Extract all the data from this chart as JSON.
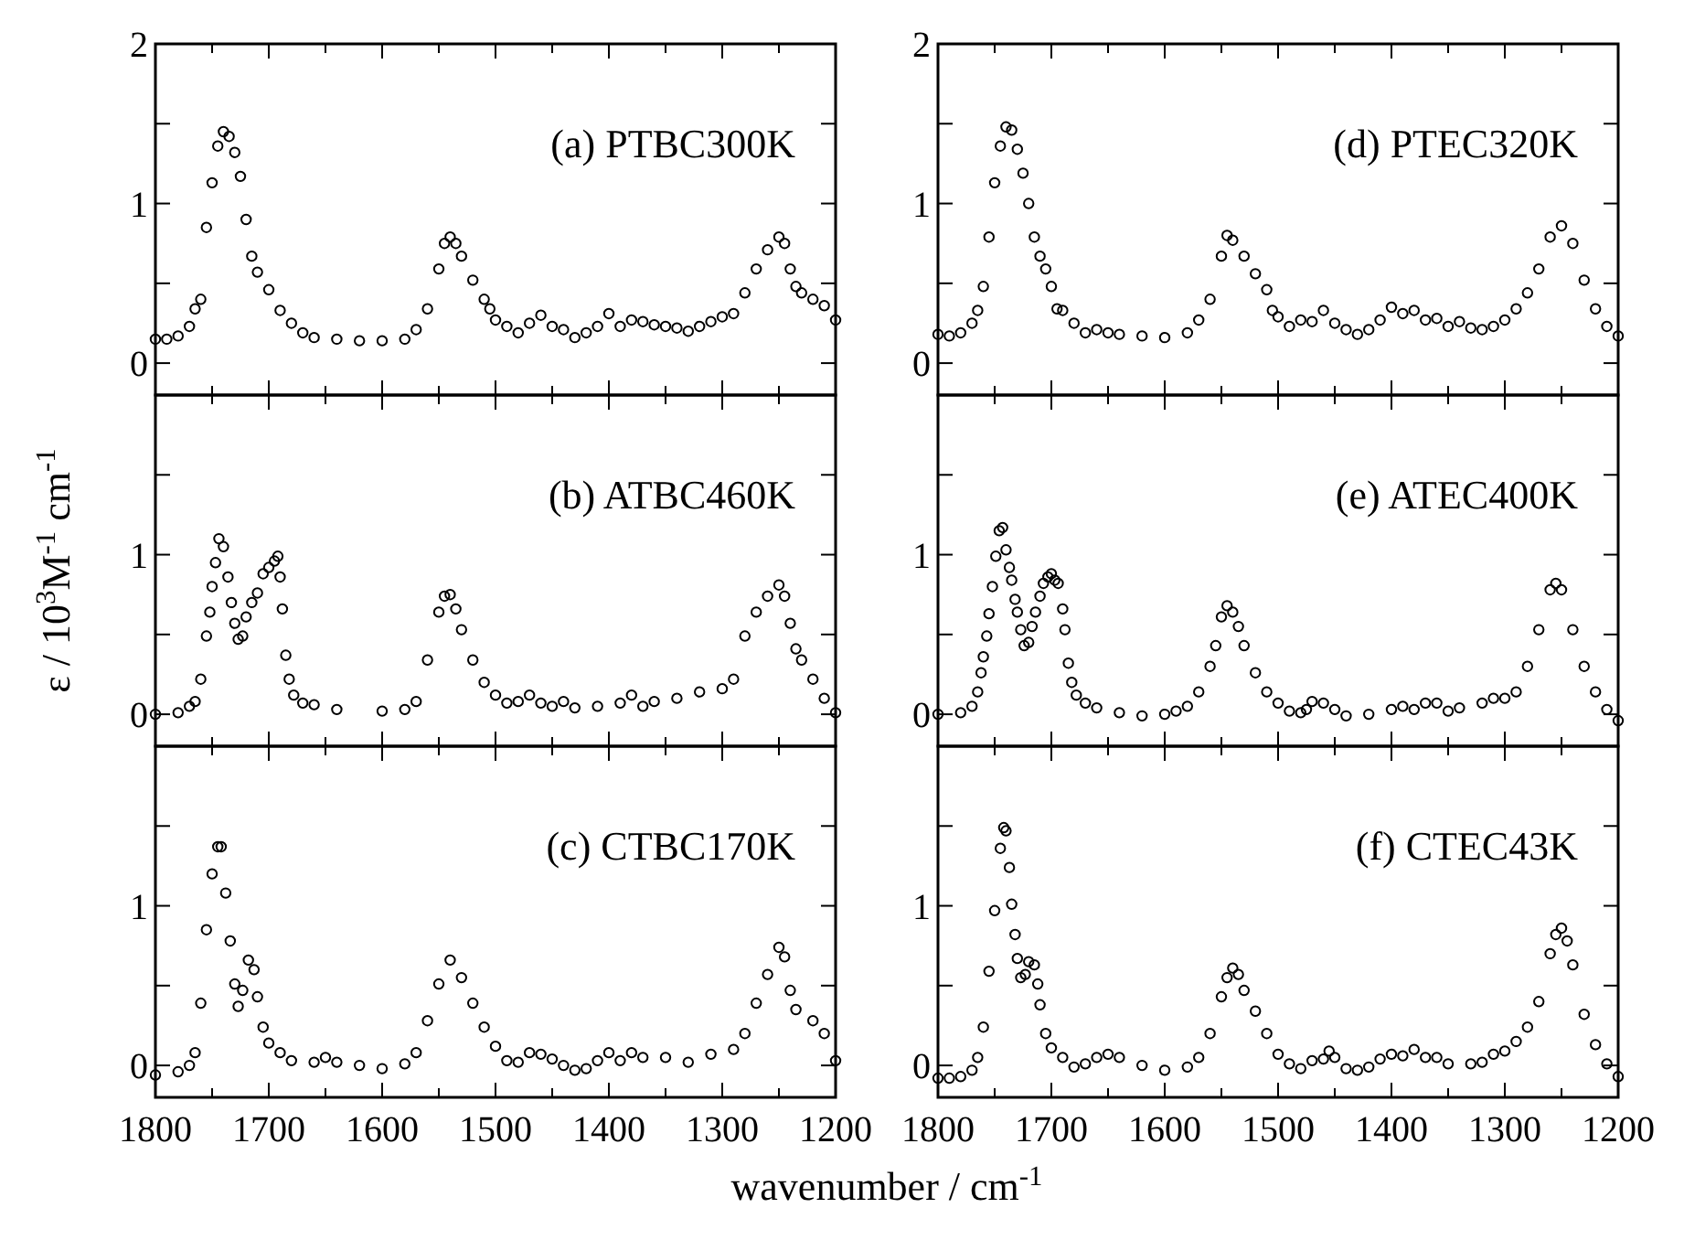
{
  "chart_data": [
    {
      "type": "scatter",
      "title": "(a) PTBC300K",
      "marker": "circle",
      "tick_labels": "y",
      "xlim": [
        1800,
        1200
      ],
      "ylim": [
        -0.2,
        2
      ],
      "xticks": [
        1800,
        {
          "value": 1750,
          "label": null
        },
        1700,
        {
          "value": 1650,
          "label": null
        },
        1600,
        {
          "value": 1550,
          "label": null
        },
        1500,
        {
          "value": 1450,
          "label": null
        },
        1400,
        {
          "value": 1350,
          "label": null
        },
        1300,
        {
          "value": 1250,
          "label": null
        },
        1200
      ],
      "yticks": [
        0,
        {
          "value": 0.5,
          "label": null
        },
        1,
        {
          "value": 1.5,
          "label": null
        },
        2
      ],
      "series": [
        {
          "color": "#000000",
          "x": [
            1800,
            1790,
            1780,
            1770,
            1765,
            1760,
            1755,
            1750,
            1745,
            1740,
            1735,
            1730,
            1725,
            1720,
            1715,
            1710,
            1700,
            1690,
            1680,
            1670,
            1660,
            1640,
            1620,
            1600,
            1580,
            1570,
            1560,
            1550,
            1545,
            1540,
            1535,
            1530,
            1520,
            1510,
            1505,
            1500,
            1490,
            1480,
            1470,
            1460,
            1450,
            1440,
            1430,
            1420,
            1410,
            1400,
            1390,
            1380,
            1370,
            1360,
            1350,
            1340,
            1330,
            1320,
            1310,
            1300,
            1290,
            1280,
            1270,
            1260,
            1250,
            1245,
            1240,
            1235,
            1230,
            1220,
            1210,
            1200
          ],
          "values": [
            0.15,
            0.15,
            0.17,
            0.23,
            0.34,
            0.4,
            0.85,
            1.13,
            1.36,
            1.45,
            1.42,
            1.32,
            1.17,
            0.9,
            0.67,
            0.57,
            0.46,
            0.33,
            0.25,
            0.19,
            0.16,
            0.15,
            0.14,
            0.14,
            0.15,
            0.21,
            0.34,
            0.59,
            0.75,
            0.79,
            0.75,
            0.67,
            0.52,
            0.4,
            0.34,
            0.27,
            0.23,
            0.19,
            0.25,
            0.3,
            0.23,
            0.21,
            0.16,
            0.19,
            0.23,
            0.31,
            0.23,
            0.27,
            0.26,
            0.24,
            0.23,
            0.22,
            0.2,
            0.23,
            0.26,
            0.29,
            0.31,
            0.44,
            0.59,
            0.71,
            0.79,
            0.75,
            0.59,
            0.48,
            0.44,
            0.4,
            0.36,
            0.27
          ]
        }
      ]
    },
    {
      "type": "scatter",
      "title": "(d) PTEC320K",
      "marker": "circle",
      "tick_labels": "y",
      "xlim": [
        1800,
        1200
      ],
      "ylim": [
        -0.2,
        2
      ],
      "xticks": [
        1800,
        {
          "value": 1750,
          "label": null
        },
        1700,
        {
          "value": 1650,
          "label": null
        },
        1600,
        {
          "value": 1550,
          "label": null
        },
        1500,
        {
          "value": 1450,
          "label": null
        },
        1400,
        {
          "value": 1350,
          "label": null
        },
        1300,
        {
          "value": 1250,
          "label": null
        },
        1200
      ],
      "yticks": [
        0,
        {
          "value": 0.5,
          "label": null
        },
        1,
        {
          "value": 1.5,
          "label": null
        },
        2
      ],
      "series": [
        {
          "color": "#000000",
          "x": [
            1800,
            1790,
            1780,
            1770,
            1765,
            1760,
            1755,
            1750,
            1745,
            1740,
            1735,
            1730,
            1725,
            1720,
            1715,
            1710,
            1705,
            1700,
            1695,
            1690,
            1680,
            1670,
            1660,
            1650,
            1640,
            1620,
            1600,
            1580,
            1570,
            1560,
            1550,
            1545,
            1540,
            1530,
            1520,
            1510,
            1505,
            1500,
            1490,
            1480,
            1470,
            1460,
            1450,
            1440,
            1430,
            1420,
            1410,
            1400,
            1390,
            1380,
            1370,
            1360,
            1350,
            1340,
            1330,
            1320,
            1310,
            1300,
            1290,
            1280,
            1270,
            1260,
            1250,
            1240,
            1230,
            1220,
            1210,
            1200
          ],
          "values": [
            0.18,
            0.17,
            0.19,
            0.25,
            0.33,
            0.48,
            0.79,
            1.13,
            1.36,
            1.48,
            1.46,
            1.34,
            1.19,
            1.0,
            0.79,
            0.67,
            0.59,
            0.48,
            0.34,
            0.33,
            0.25,
            0.19,
            0.21,
            0.19,
            0.18,
            0.17,
            0.16,
            0.19,
            0.27,
            0.4,
            0.67,
            0.8,
            0.77,
            0.67,
            0.56,
            0.46,
            0.33,
            0.29,
            0.23,
            0.27,
            0.26,
            0.33,
            0.25,
            0.21,
            0.18,
            0.21,
            0.27,
            0.35,
            0.31,
            0.33,
            0.27,
            0.28,
            0.23,
            0.26,
            0.22,
            0.21,
            0.23,
            0.27,
            0.34,
            0.44,
            0.59,
            0.79,
            0.86,
            0.75,
            0.52,
            0.34,
            0.23,
            0.17
          ]
        }
      ]
    },
    {
      "type": "scatter",
      "title": "(b) ATBC460K",
      "ylabel": "ε / 10$^{3}$M$^{-1}$ cm$^{-1}$",
      "marker": "circle",
      "tick_labels": "y",
      "xlim": [
        1800,
        1200
      ],
      "ylim": [
        -0.2,
        2
      ],
      "xticks": [
        1800,
        {
          "value": 1750,
          "label": null
        },
        1700,
        {
          "value": 1650,
          "label": null
        },
        1600,
        {
          "value": 1550,
          "label": null
        },
        1500,
        {
          "value": 1450,
          "label": null
        },
        1400,
        {
          "value": 1350,
          "label": null
        },
        1300,
        {
          "value": 1250,
          "label": null
        },
        1200
      ],
      "yticks": [
        0,
        {
          "value": 0.5,
          "label": null
        },
        1,
        {
          "value": 1.5,
          "label": null
        },
        {
          "value": 2,
          "label": null
        }
      ],
      "series": [
        {
          "color": "#000000",
          "x": [
            1800,
            1780,
            1770,
            1765,
            1760,
            1755,
            1752,
            1750,
            1747,
            1744,
            1740,
            1736,
            1733,
            1730,
            1727,
            1723,
            1720,
            1715,
            1710,
            1705,
            1700,
            1695,
            1692,
            1690,
            1688,
            1685,
            1682,
            1678,
            1670,
            1660,
            1640,
            1600,
            1580,
            1570,
            1560,
            1550,
            1545,
            1540,
            1535,
            1530,
            1520,
            1510,
            1500,
            1490,
            1480,
            1470,
            1460,
            1450,
            1440,
            1430,
            1410,
            1390,
            1380,
            1370,
            1360,
            1340,
            1320,
            1300,
            1290,
            1280,
            1270,
            1260,
            1250,
            1245,
            1240,
            1235,
            1230,
            1220,
            1210,
            1200
          ],
          "values": [
            0.0,
            0.01,
            0.05,
            0.08,
            0.22,
            0.49,
            0.64,
            0.8,
            0.95,
            1.1,
            1.05,
            0.86,
            0.7,
            0.57,
            0.47,
            0.49,
            0.61,
            0.7,
            0.76,
            0.88,
            0.92,
            0.96,
            0.99,
            0.86,
            0.66,
            0.37,
            0.22,
            0.12,
            0.07,
            0.06,
            0.03,
            0.02,
            0.03,
            0.08,
            0.34,
            0.64,
            0.74,
            0.75,
            0.66,
            0.53,
            0.34,
            0.2,
            0.12,
            0.07,
            0.08,
            0.12,
            0.07,
            0.05,
            0.08,
            0.04,
            0.05,
            0.07,
            0.12,
            0.05,
            0.08,
            0.1,
            0.14,
            0.16,
            0.22,
            0.49,
            0.64,
            0.74,
            0.81,
            0.74,
            0.57,
            0.41,
            0.34,
            0.22,
            0.1,
            0.01
          ]
        }
      ]
    },
    {
      "type": "scatter",
      "title": "(e) ATEC400K",
      "marker": "circle",
      "tick_labels": "y",
      "xlim": [
        1800,
        1200
      ],
      "ylim": [
        -0.2,
        2
      ],
      "xticks": [
        1800,
        {
          "value": 1750,
          "label": null
        },
        1700,
        {
          "value": 1650,
          "label": null
        },
        1600,
        {
          "value": 1550,
          "label": null
        },
        1500,
        {
          "value": 1450,
          "label": null
        },
        1400,
        {
          "value": 1350,
          "label": null
        },
        1300,
        {
          "value": 1250,
          "label": null
        },
        1200
      ],
      "yticks": [
        0,
        {
          "value": 0.5,
          "label": null
        },
        1,
        {
          "value": 1.5,
          "label": null
        },
        {
          "value": 2,
          "label": null
        }
      ],
      "series": [
        {
          "color": "#000000",
          "x": [
            1800,
            1780,
            1770,
            1765,
            1762,
            1760,
            1757,
            1755,
            1752,
            1749,
            1746,
            1743,
            1740,
            1737,
            1735,
            1732,
            1730,
            1727,
            1724,
            1720,
            1717,
            1714,
            1710,
            1707,
            1703,
            1700,
            1697,
            1694,
            1690,
            1688,
            1685,
            1682,
            1678,
            1670,
            1660,
            1640,
            1620,
            1600,
            1590,
            1580,
            1570,
            1560,
            1555,
            1550,
            1545,
            1540,
            1535,
            1530,
            1520,
            1510,
            1500,
            1490,
            1480,
            1475,
            1470,
            1460,
            1450,
            1440,
            1420,
            1400,
            1390,
            1380,
            1370,
            1360,
            1350,
            1340,
            1320,
            1310,
            1300,
            1290,
            1280,
            1270,
            1260,
            1255,
            1250,
            1240,
            1230,
            1220,
            1210,
            1200
          ],
          "values": [
            0.0,
            0.01,
            0.05,
            0.14,
            0.26,
            0.36,
            0.49,
            0.63,
            0.8,
            0.99,
            1.15,
            1.17,
            1.03,
            0.92,
            0.84,
            0.72,
            0.64,
            0.53,
            0.43,
            0.45,
            0.55,
            0.64,
            0.74,
            0.82,
            0.86,
            0.88,
            0.84,
            0.82,
            0.66,
            0.53,
            0.32,
            0.2,
            0.12,
            0.07,
            0.04,
            0.01,
            -0.01,
            0.0,
            0.02,
            0.05,
            0.14,
            0.3,
            0.43,
            0.61,
            0.68,
            0.64,
            0.55,
            0.43,
            0.26,
            0.14,
            0.07,
            0.02,
            0.01,
            0.03,
            0.08,
            0.07,
            0.03,
            -0.01,
            0.0,
            0.03,
            0.05,
            0.03,
            0.07,
            0.07,
            0.02,
            0.04,
            0.07,
            0.1,
            0.1,
            0.14,
            0.3,
            0.53,
            0.78,
            0.82,
            0.78,
            0.53,
            0.3,
            0.14,
            0.03,
            -0.04
          ]
        }
      ]
    },
    {
      "type": "scatter",
      "title": "(c) CTBC170K",
      "xlabel": "wavenumber / cm$^{-1}$",
      "marker": "circle",
      "xlim": [
        1800,
        1200
      ],
      "ylim": [
        -0.2,
        2
      ],
      "xticks": [
        1800,
        {
          "value": 1750,
          "label": null
        },
        1700,
        {
          "value": 1650,
          "label": null
        },
        1600,
        {
          "value": 1550,
          "label": null
        },
        1500,
        {
          "value": 1450,
          "label": null
        },
        1400,
        {
          "value": 1350,
          "label": null
        },
        1300,
        {
          "value": 1250,
          "label": null
        },
        1200
      ],
      "yticks": [
        0,
        {
          "value": 0.5,
          "label": null
        },
        1,
        {
          "value": 1.5,
          "label": null
        },
        {
          "value": 2,
          "label": null
        }
      ],
      "series": [
        {
          "color": "#000000",
          "x": [
            1800,
            1780,
            1770,
            1765,
            1760,
            1755,
            1750,
            1745,
            1742,
            1738,
            1734,
            1730,
            1727,
            1723,
            1718,
            1713,
            1710,
            1705,
            1700,
            1690,
            1680,
            1660,
            1650,
            1640,
            1620,
            1600,
            1580,
            1570,
            1560,
            1550,
            1540,
            1530,
            1520,
            1510,
            1500,
            1490,
            1480,
            1470,
            1460,
            1450,
            1440,
            1430,
            1420,
            1410,
            1400,
            1390,
            1380,
            1370,
            1350,
            1330,
            1310,
            1290,
            1280,
            1270,
            1260,
            1250,
            1245,
            1240,
            1235,
            1220,
            1210,
            1200
          ],
          "values": [
            -0.06,
            -0.04,
            0.0,
            0.08,
            0.39,
            0.85,
            1.2,
            1.37,
            1.37,
            1.08,
            0.78,
            0.51,
            0.37,
            0.47,
            0.66,
            0.6,
            0.43,
            0.24,
            0.14,
            0.08,
            0.03,
            0.02,
            0.05,
            0.02,
            0.0,
            -0.02,
            0.01,
            0.08,
            0.28,
            0.51,
            0.66,
            0.55,
            0.39,
            0.24,
            0.12,
            0.03,
            0.02,
            0.08,
            0.07,
            0.04,
            0.0,
            -0.03,
            -0.02,
            0.03,
            0.08,
            0.03,
            0.08,
            0.05,
            0.05,
            0.02,
            0.07,
            0.1,
            0.2,
            0.39,
            0.57,
            0.74,
            0.68,
            0.47,
            0.35,
            0.28,
            0.2,
            0.03
          ]
        }
      ]
    },
    {
      "type": "scatter",
      "title": "(f) CTEC43K",
      "marker": "circle",
      "xlim": [
        1800,
        1200
      ],
      "ylim": [
        -0.2,
        2
      ],
      "xticks": [
        1800,
        {
          "value": 1750,
          "label": null
        },
        1700,
        {
          "value": 1650,
          "label": null
        },
        1600,
        {
          "value": 1550,
          "label": null
        },
        1500,
        {
          "value": 1450,
          "label": null
        },
        1400,
        {
          "value": 1350,
          "label": null
        },
        1300,
        {
          "value": 1250,
          "label": null
        },
        1200
      ],
      "yticks": [
        0,
        {
          "value": 0.5,
          "label": null
        },
        1,
        {
          "value": 1.5,
          "label": null
        },
        {
          "value": 2,
          "label": null
        }
      ],
      "series": [
        {
          "color": "#000000",
          "x": [
            1800,
            1790,
            1780,
            1770,
            1765,
            1760,
            1755,
            1750,
            1745,
            1742,
            1740,
            1737,
            1735,
            1732,
            1730,
            1727,
            1723,
            1720,
            1715,
            1712,
            1710,
            1705,
            1700,
            1690,
            1680,
            1670,
            1660,
            1650,
            1640,
            1620,
            1600,
            1580,
            1570,
            1560,
            1550,
            1545,
            1540,
            1535,
            1530,
            1520,
            1510,
            1500,
            1490,
            1480,
            1470,
            1460,
            1455,
            1450,
            1440,
            1430,
            1420,
            1410,
            1400,
            1390,
            1380,
            1370,
            1360,
            1350,
            1330,
            1320,
            1310,
            1300,
            1290,
            1280,
            1270,
            1260,
            1255,
            1250,
            1245,
            1240,
            1230,
            1220,
            1210,
            1200
          ],
          "values": [
            -0.08,
            -0.08,
            -0.07,
            -0.03,
            0.05,
            0.24,
            0.59,
            0.97,
            1.36,
            1.49,
            1.47,
            1.24,
            1.01,
            0.82,
            0.67,
            0.55,
            0.57,
            0.65,
            0.63,
            0.51,
            0.38,
            0.2,
            0.11,
            0.05,
            -0.01,
            0.01,
            0.05,
            0.07,
            0.05,
            0.0,
            -0.03,
            -0.01,
            0.05,
            0.2,
            0.43,
            0.55,
            0.61,
            0.57,
            0.47,
            0.34,
            0.2,
            0.07,
            0.01,
            -0.02,
            0.03,
            0.04,
            0.09,
            0.05,
            -0.02,
            -0.03,
            -0.01,
            0.04,
            0.07,
            0.06,
            0.1,
            0.05,
            0.05,
            0.01,
            0.01,
            0.02,
            0.07,
            0.09,
            0.15,
            0.24,
            0.4,
            0.7,
            0.82,
            0.86,
            0.78,
            0.63,
            0.32,
            0.13,
            0.01,
            -0.07
          ]
        }
      ]
    }
  ]
}
